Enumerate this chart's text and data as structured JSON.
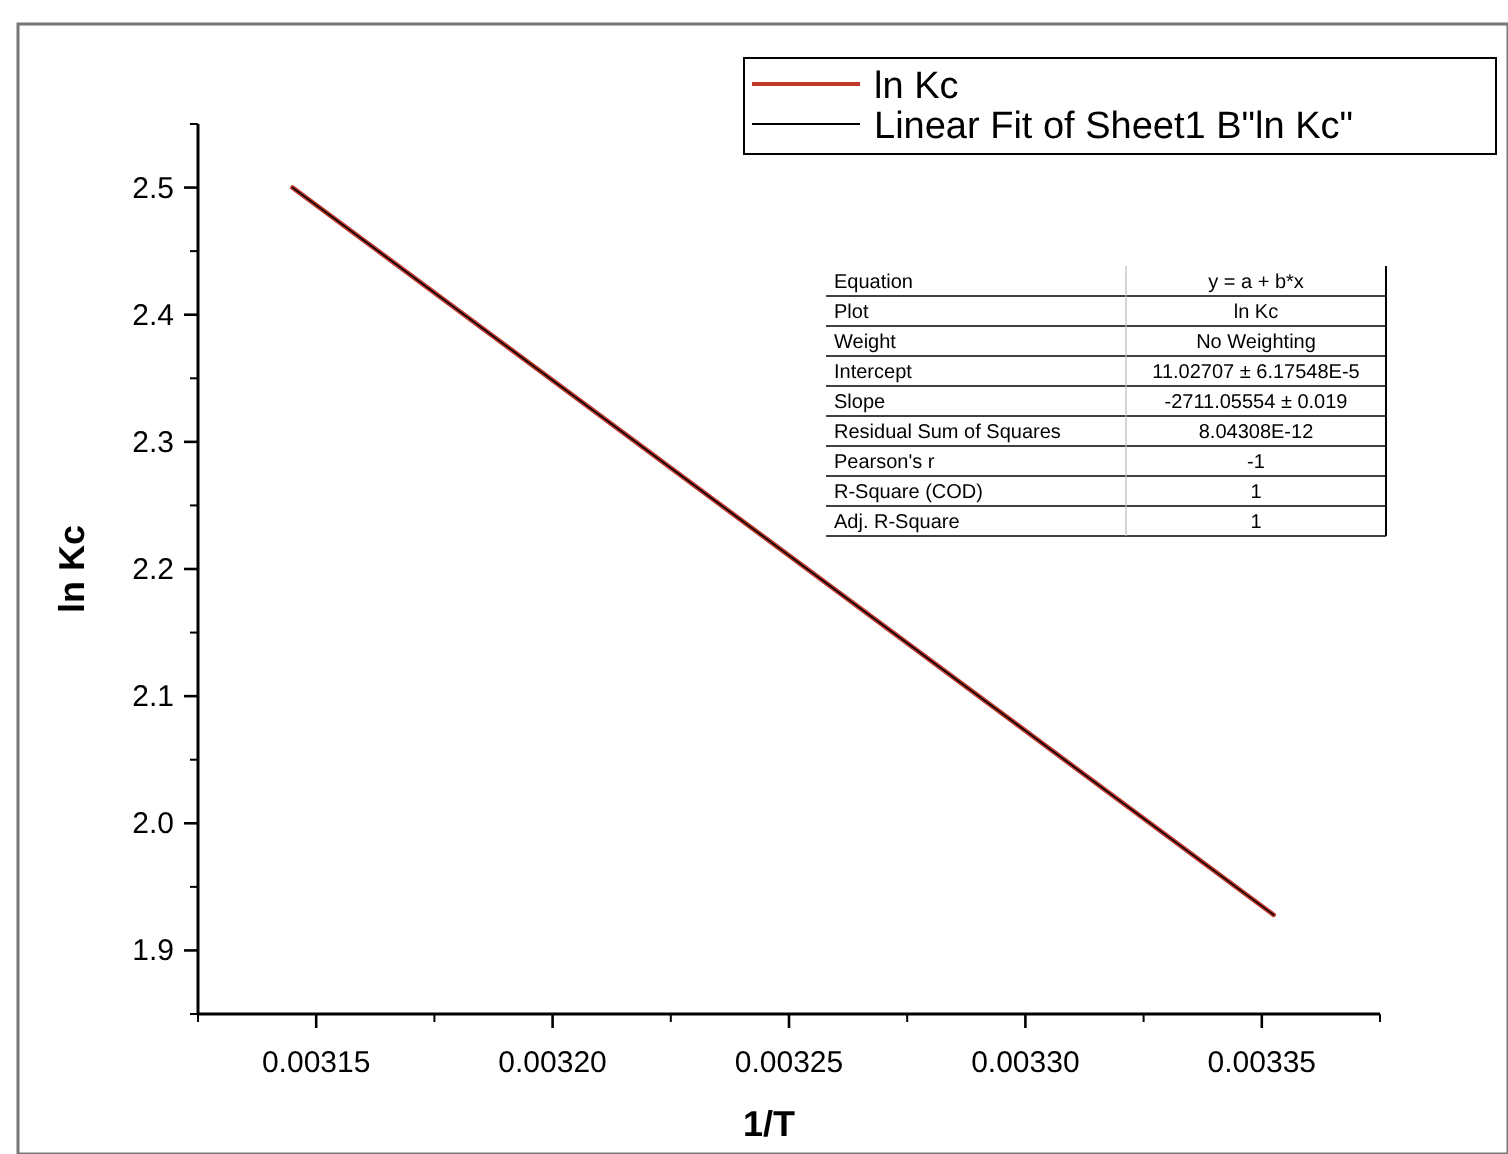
{
  "chart_data": {
    "type": "line",
    "xlabel": "1/T",
    "ylabel": "ln Kc",
    "xlim": [
      0.003125,
      0.003375
    ],
    "xticks": [
      0.00315,
      {
        "value": 0.0032,
        "label": "0.00320"
      },
      0.00325,
      {
        "value": 0.0033,
        "label": "0.00330"
      },
      0.00335
    ],
    "ylim": [
      1.85,
      2.55
    ],
    "yticks": [
      1.9,
      {
        "value": 2.0,
        "label": "2.0"
      },
      2.1,
      2.2,
      2.3,
      2.4,
      2.5
    ],
    "grid": false,
    "legend": "top right",
    "marker": "none",
    "line_style": "solid",
    "x": [
      0.003145,
      0.0033525
    ],
    "series": [
      {
        "name": "ln Kc",
        "color": "#c0392b",
        "values": [
          2.5,
          1.928
        ]
      },
      {
        "name": "Linear Fit of Sheet1 B\"ln Kc\"",
        "color": "#000000",
        "values": [
          2.5,
          1.928
        ]
      }
    ],
    "annotations": [
      "Equation",
      "y = a + b*x",
      "Plot",
      "ln Kc",
      "Weight",
      "No Weighting",
      "Intercept",
      "11.02707 ± 6.17548E-5",
      "Slope",
      "-2711.05554 ± 0.019",
      "Residual Sum of Squares",
      "8.04308E-12",
      "Pearson's r",
      "-1",
      "R-Square (COD)",
      "1",
      "Adj. R-Square",
      "1"
    ]
  }
}
